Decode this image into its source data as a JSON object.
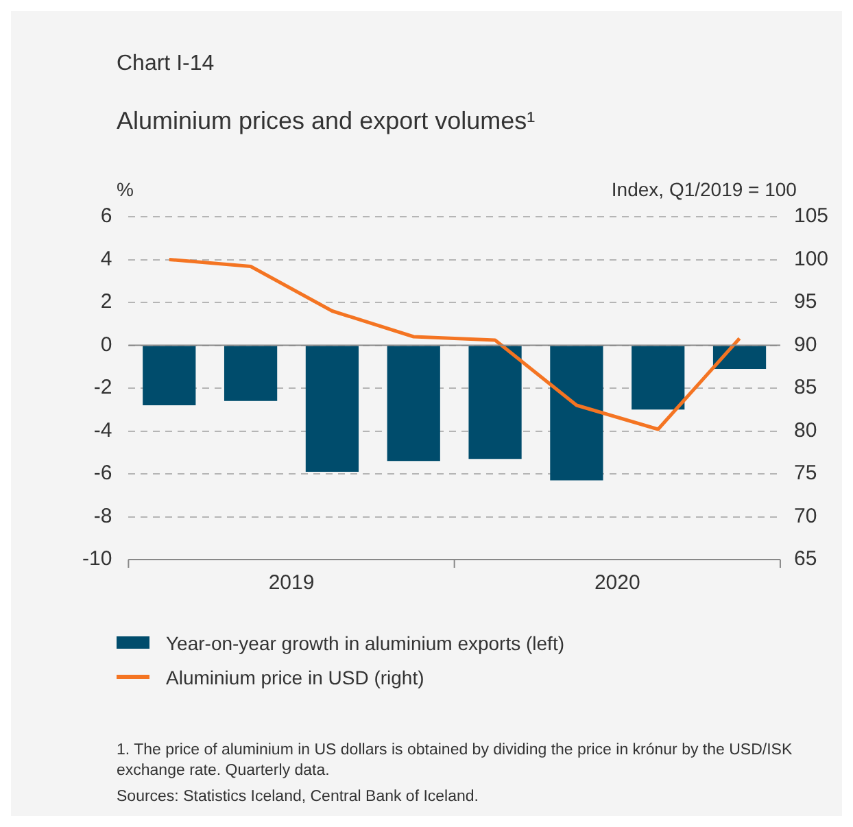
{
  "chart_data": {
    "type": "bar",
    "subtitle": "Chart I-14",
    "title": "Aluminium prices and export volumes¹",
    "ylabel": "%",
    "y2label": "Index, Q1/2019 = 100",
    "categories": [
      null,
      null,
      null,
      null,
      null,
      null,
      null,
      null
    ],
    "series": [
      {
        "name": "Year-on-year growth in aluminium exports (left)",
        "color": "#004c6c",
        "values": [
          -2.8,
          -2.6,
          -5.9,
          -5.4,
          -5.3,
          -6.3,
          -3.0,
          -1.1
        ]
      },
      {
        "name": "Aluminium price in USD (right)",
        "type": "line",
        "axis": "y2",
        "color": "#f47422",
        "values": [
          100,
          99.2,
          94,
          91,
          90.6,
          83,
          80.2,
          90.8
        ]
      }
    ],
    "ylim": [
      -10,
      6
    ],
    "yticks": [
      -10,
      -8,
      -6,
      -4,
      -2,
      0,
      2,
      4,
      6
    ],
    "y2lim": [
      65,
      105
    ],
    "y2ticks": [
      65,
      70,
      75,
      80,
      85,
      90,
      95,
      100,
      105
    ],
    "grid": "y",
    "legend": "bottom",
    "marker": "none",
    "line_style": "solid",
    "annotations": [
      "2019",
      "2020",
      "1. The price of aluminium in US dollars is obtained by dividing the price in krónur by the USD/ISK exchange rate. Quarterly data.",
      "Sources: Statistics Iceland, Central Bank of Iceland."
    ]
  }
}
